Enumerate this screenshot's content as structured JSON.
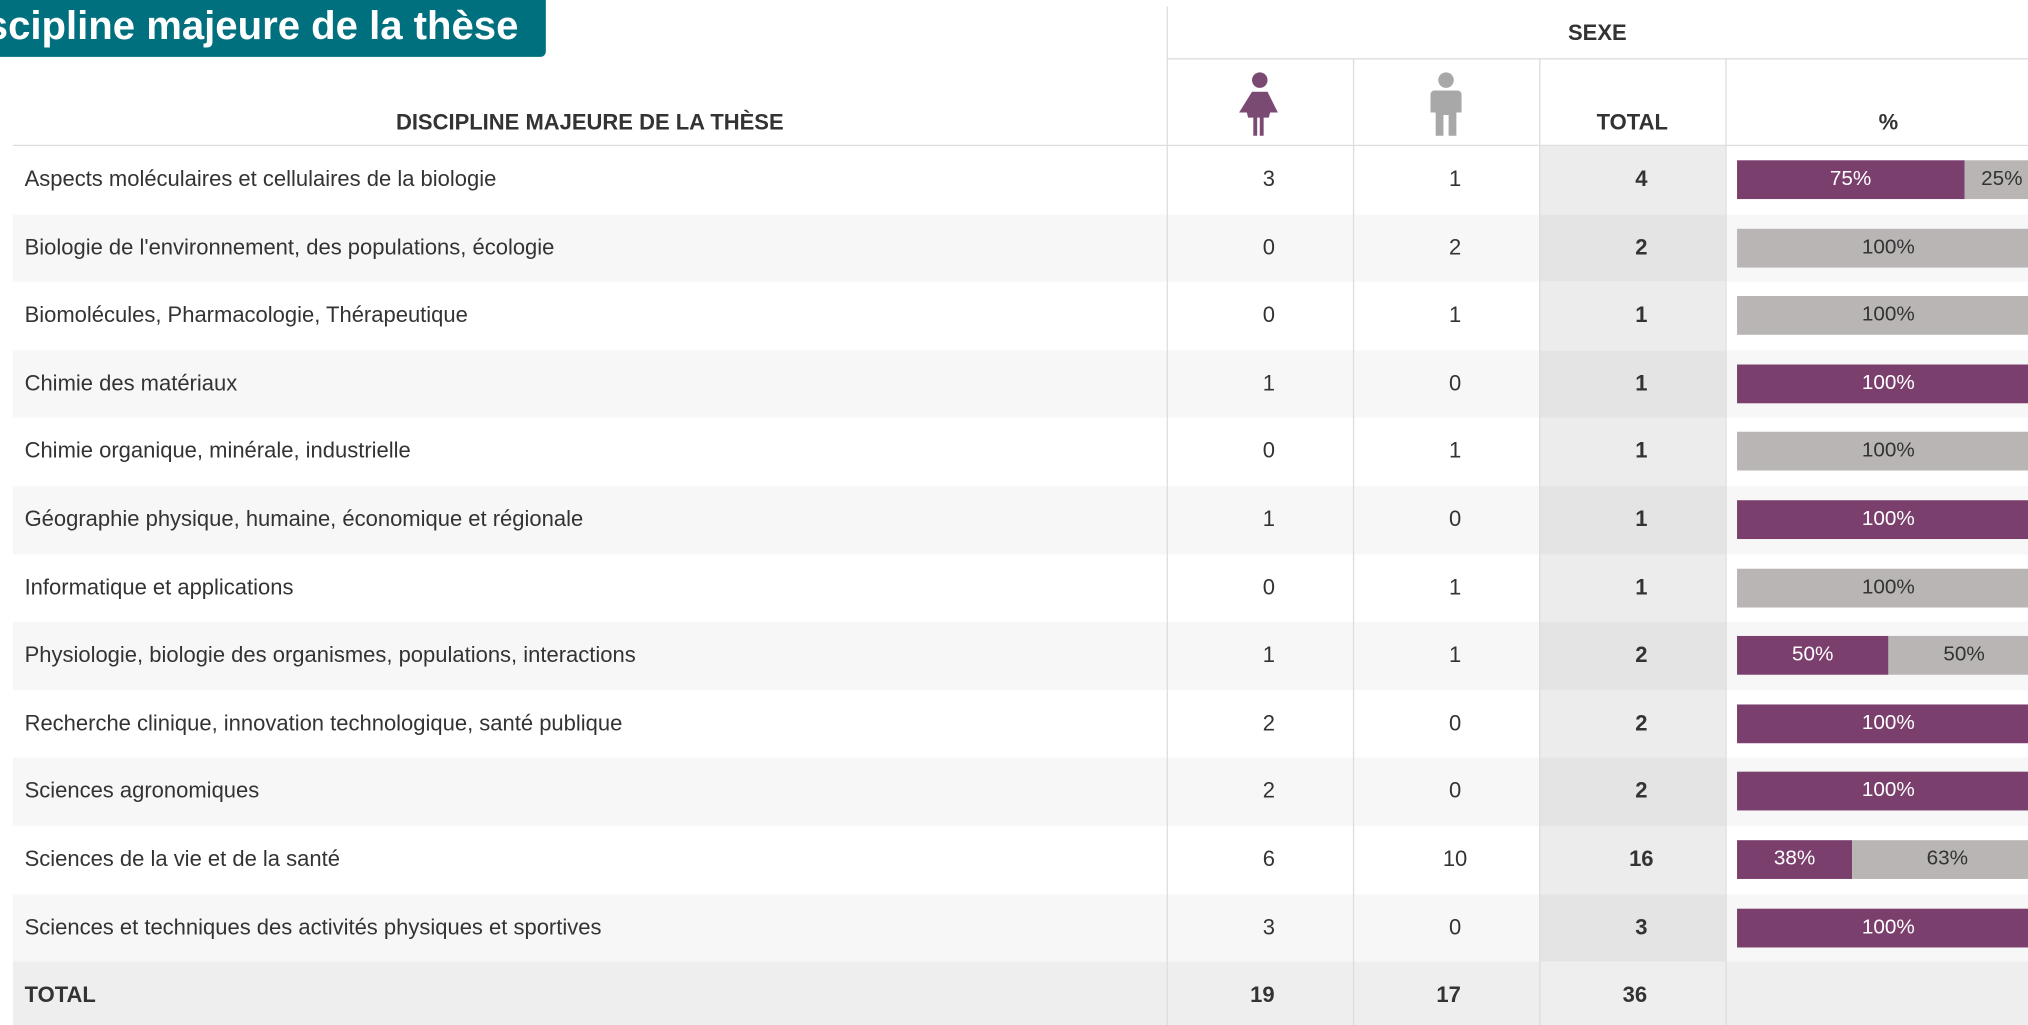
{
  "header": {
    "title": "Discipline majeure de la thèse"
  },
  "table": {
    "group_header": "SEXE",
    "columns": [
      "DISCIPLINE MAJEURE DE LA THÈSE",
      "TOTAL",
      "%"
    ],
    "rows": [
      {
        "label": "Aspects moléculaires et cellulaires de la biologie",
        "female": 3,
        "male": 1,
        "total": 4,
        "pct_female": {
          "value": 75,
          "label": "75%"
        },
        "pct_male": {
          "value": 25,
          "label": "25%"
        }
      },
      {
        "label": "Biologie de l'environnement, des populations, écologie",
        "female": 0,
        "male": 2,
        "total": 2,
        "pct_female": null,
        "pct_male": {
          "value": 100,
          "label": "100%"
        }
      },
      {
        "label": "Biomolécules, Pharmacologie, Thérapeutique",
        "female": 0,
        "male": 1,
        "total": 1,
        "pct_female": null,
        "pct_male": {
          "value": 100,
          "label": "100%"
        }
      },
      {
        "label": "Chimie des matériaux",
        "female": 1,
        "male": 0,
        "total": 1,
        "pct_female": {
          "value": 100,
          "label": "100%"
        },
        "pct_male": null
      },
      {
        "label": "Chimie organique, minérale, industrielle",
        "female": 0,
        "male": 1,
        "total": 1,
        "pct_female": null,
        "pct_male": {
          "value": 100,
          "label": "100%"
        }
      },
      {
        "label": "Géographie physique, humaine, économique et régionale",
        "female": 1,
        "male": 0,
        "total": 1,
        "pct_female": {
          "value": 100,
          "label": "100%"
        },
        "pct_male": null
      },
      {
        "label": "Informatique et applications",
        "female": 0,
        "male": 1,
        "total": 1,
        "pct_female": null,
        "pct_male": {
          "value": 100,
          "label": "100%"
        }
      },
      {
        "label": "Physiologie, biologie des organismes, populations, interactions",
        "female": 1,
        "male": 1,
        "total": 2,
        "pct_female": {
          "value": 50,
          "label": "50%"
        },
        "pct_male": {
          "value": 50,
          "label": "50%"
        }
      },
      {
        "label": "Recherche clinique, innovation technologique, santé publique",
        "female": 2,
        "male": 0,
        "total": 2,
        "pct_female": {
          "value": 100,
          "label": "100%"
        },
        "pct_male": null
      },
      {
        "label": "Sciences agronomiques",
        "female": 2,
        "male": 0,
        "total": 2,
        "pct_female": {
          "value": 100,
          "label": "100%"
        },
        "pct_male": null
      },
      {
        "label": "Sciences de la vie et de la santé",
        "female": 6,
        "male": 10,
        "total": 16,
        "pct_female": {
          "value": 38,
          "label": "38%"
        },
        "pct_male": {
          "value": 63,
          "label": "63%"
        }
      },
      {
        "label": "Sciences et techniques des activités physiques et sportives",
        "female": 3,
        "male": 0,
        "total": 3,
        "pct_female": {
          "value": 100,
          "label": "100%"
        },
        "pct_male": null
      }
    ],
    "total_row": {
      "label": "TOTAL",
      "female": 19,
      "male": 17,
      "total": 36
    }
  }
}
